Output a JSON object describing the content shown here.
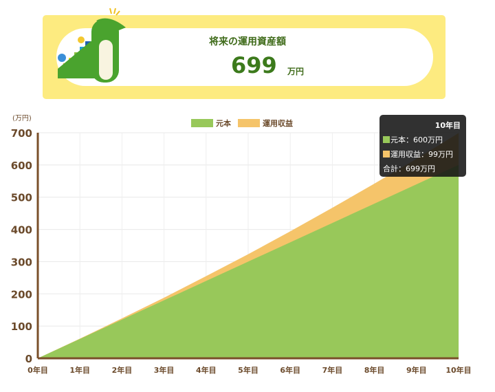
{
  "summary": {
    "title": "将来の運用資産額",
    "amount": "699",
    "unit": "万円"
  },
  "tooltip": {
    "title": "10年目",
    "principal": "元本：600万円",
    "returns": "運用収益：99万円",
    "total": "合計：699万円"
  },
  "chart_data": {
    "type": "area",
    "stacked": true,
    "ylabel": "(万円)",
    "ylim": [
      0,
      700
    ],
    "yticks": [
      0,
      100,
      200,
      300,
      400,
      500,
      600,
      700
    ],
    "categories": [
      "0年目",
      "1年目",
      "2年目",
      "3年目",
      "4年目",
      "5年目",
      "6年目",
      "7年目",
      "8年目",
      "9年目",
      "10年目"
    ],
    "series": [
      {
        "name": "元本",
        "color": "#98c85a",
        "values": [
          0,
          60,
          120,
          180,
          240,
          300,
          360,
          420,
          480,
          540,
          600
        ]
      },
      {
        "name": "運用収益",
        "color": "#f5c46a",
        "values": [
          0,
          1,
          4,
          8,
          15,
          23,
          34,
          47,
          62,
          79,
          99
        ]
      }
    ],
    "legend": "top",
    "grid": true,
    "axis_color": "#7a4f2a"
  }
}
